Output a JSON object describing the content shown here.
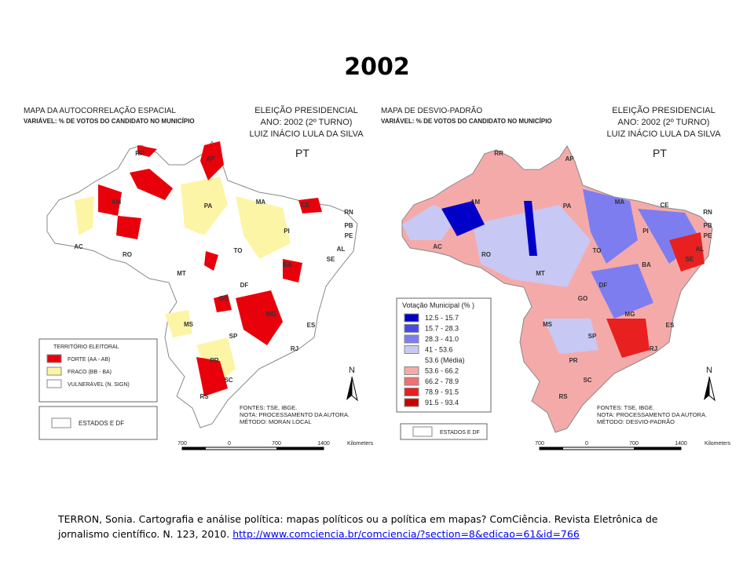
{
  "title": "2002",
  "left_map": {
    "heading": "MAPA DA AUTOCORRELAÇÃO ESPACIAL",
    "variable": "VARIÁVEL: % DE VOTOS DO CANDIDATO NO MUNICÍPIO",
    "election": [
      "ELEIÇÃO PRESIDENCIAL",
      "ANO: 2002  (2º TURNO)",
      "LUIZ INÁCIO LULA DA SILVA"
    ],
    "party": "PT",
    "state_labels": [
      "RR",
      "AP",
      "AM",
      "PA",
      "MA",
      "CE",
      "RN",
      "PB",
      "PE",
      "AL",
      "SE",
      "PI",
      "AC",
      "RO",
      "TO",
      "BA",
      "MT",
      "DF",
      "GO",
      "MG",
      "ES",
      "MS",
      "SP",
      "RJ",
      "PR",
      "SC",
      "RS"
    ],
    "legend": {
      "title": "TERRITÓRIO ELEITORAL",
      "items": [
        {
          "label": "FORTE (AA - AB)",
          "color": "#e8000b"
        },
        {
          "label": "FRACO (BB - BA)",
          "color": "#fdf5a6"
        },
        {
          "label": "VULNERÁVEL  (N. SIGN)",
          "color": "#ffffff"
        }
      ]
    },
    "states_box": "ESTADOS E DF",
    "sources": [
      "FONTES: TSE, IBGE.",
      "NOTA: PROCESSAMENTO DA AUTORA.",
      "MÉTODO: MORAN LOCAL"
    ],
    "north": "N",
    "scale": [
      "700",
      "0",
      "700",
      "1400",
      "Kilometers"
    ]
  },
  "right_map": {
    "heading": "MAPA DE DESVIO-PADRÃO",
    "variable": "VARIÁVEL: % DE VOTOS DO CANDIDATO NO MUNICÍPIO",
    "election": [
      "ELEIÇÃO PRESIDENCIAL",
      "ANO: 2002  (2º TURNO)",
      "LUIZ INÁCIO LULA DA SILVA"
    ],
    "party": "PT",
    "state_labels": [
      "RR",
      "AP",
      "AM",
      "PA",
      "MA",
      "CE",
      "RN",
      "PB",
      "PE",
      "AL",
      "SE",
      "PI",
      "AC",
      "RO",
      "TO",
      "BA",
      "MT",
      "DF",
      "GO",
      "MG",
      "ES",
      "MS",
      "SP",
      "RJ",
      "PR",
      "SC",
      "RS"
    ],
    "legend": {
      "title": "Votação Municipal  (% )",
      "items": [
        {
          "label": "12.5 - 15.7",
          "color": "#0000c8"
        },
        {
          "label": "15.7 - 28.3",
          "color": "#4a4ae6"
        },
        {
          "label": "28.3 - 41.0",
          "color": "#7d7df0"
        },
        {
          "label": "41 - 53.6",
          "color": "#c8c8f5"
        },
        {
          "label": "53.6 (Média)",
          "color": "#ffffff"
        },
        {
          "label": "53.6 - 66.2",
          "color": "#f5aaaa"
        },
        {
          "label": "66.2 - 78.9",
          "color": "#f07070"
        },
        {
          "label": "78.9 - 91.5",
          "color": "#e82020"
        },
        {
          "label": "91.5 - 93.4",
          "color": "#c80000"
        }
      ]
    },
    "states_box": "ESTADOS E DF",
    "sources": [
      "FONTES: TSE, IBGE.",
      "NOTA: PROCESSAMENTO DA AUTORA.",
      "MÉTODO: DESVIO-PADRÃO"
    ],
    "north": "N",
    "scale": [
      "700",
      "0",
      "700",
      "1400",
      "Kilometers"
    ]
  },
  "citation": {
    "text": "TERRON, Sonia. Cartografia e análise política: mapas políticos ou  a política em mapas? ComCiência. Revista Eletrônica de jornalismo científico. N. 123, 2010.",
    "link": "http://www.comciencia.br/comciencia/?section=8&edicao=61&id=766"
  }
}
